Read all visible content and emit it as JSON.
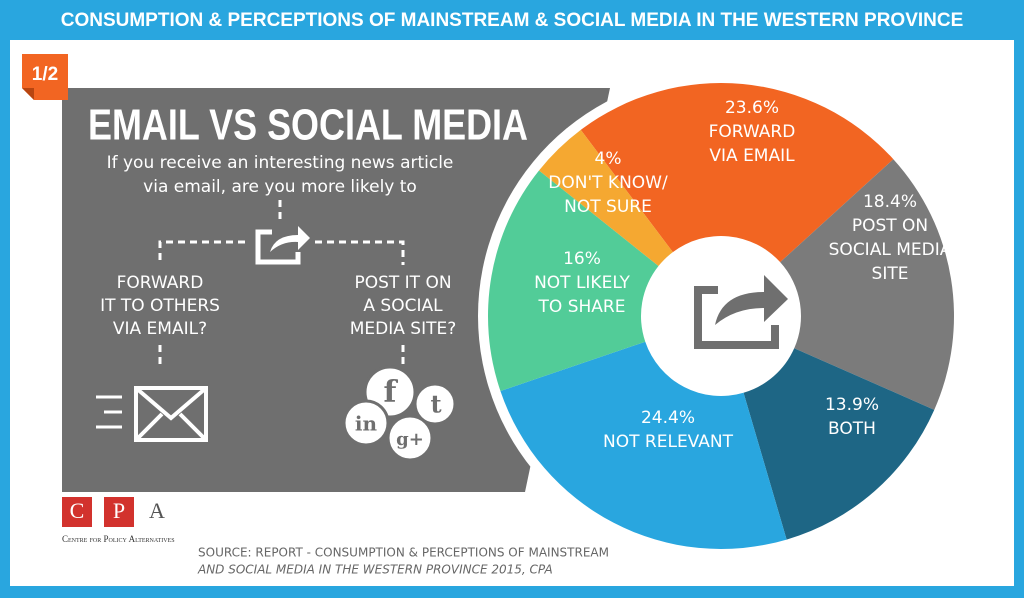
{
  "header": {
    "title": "CONSUMPTION & PERCEPTIONS OF MAINSTREAM & SOCIAL MEDIA IN THE WESTERN PROVINCE"
  },
  "badge": "1/2",
  "panel": {
    "heading": "EMAIL VS SOCIAL MEDIA",
    "question": [
      "If you receive an interesting news article",
      "via email, are you more likely to"
    ],
    "option_left": [
      "FORWARD",
      "IT TO OTHERS",
      "VIA EMAIL?"
    ],
    "option_right": [
      "POST IT ON",
      "A SOCIAL",
      "MEDIA SITE?"
    ]
  },
  "chart_data": {
    "type": "pie",
    "categories": [
      [
        "FORWARD",
        "VIA EMAIL"
      ],
      [
        "POST ON",
        "SOCIAL MEDIA",
        "SITE"
      ],
      [
        "BOTH"
      ],
      [
        "NOT RELEVANT"
      ],
      [
        "NOT LIKELY",
        "TO SHARE"
      ],
      [
        "DON'T KNOW/",
        "NOT SURE"
      ]
    ],
    "values": [
      23.6,
      18.4,
      13.9,
      24.4,
      16,
      4
    ],
    "value_labels": [
      "23.6%",
      "18.4%",
      "13.9%",
      "24.4%",
      "16%",
      "4%"
    ],
    "colors": [
      "#f26522",
      "#7b7b7b",
      "#1e6685",
      "#29a6df",
      "#52cc98",
      "#f5a831"
    ],
    "donut": true
  },
  "footer": {
    "logo": [
      "C",
      "P",
      "A"
    ],
    "organization": "Centre for Policy Alternatives",
    "source": [
      "SOURCE: REPORT - CONSUMPTION & PERCEPTIONS OF MAINSTREAM",
      "AND SOCIAL MEDIA IN THE WESTERN PROVINCE 2015, CPA"
    ]
  }
}
